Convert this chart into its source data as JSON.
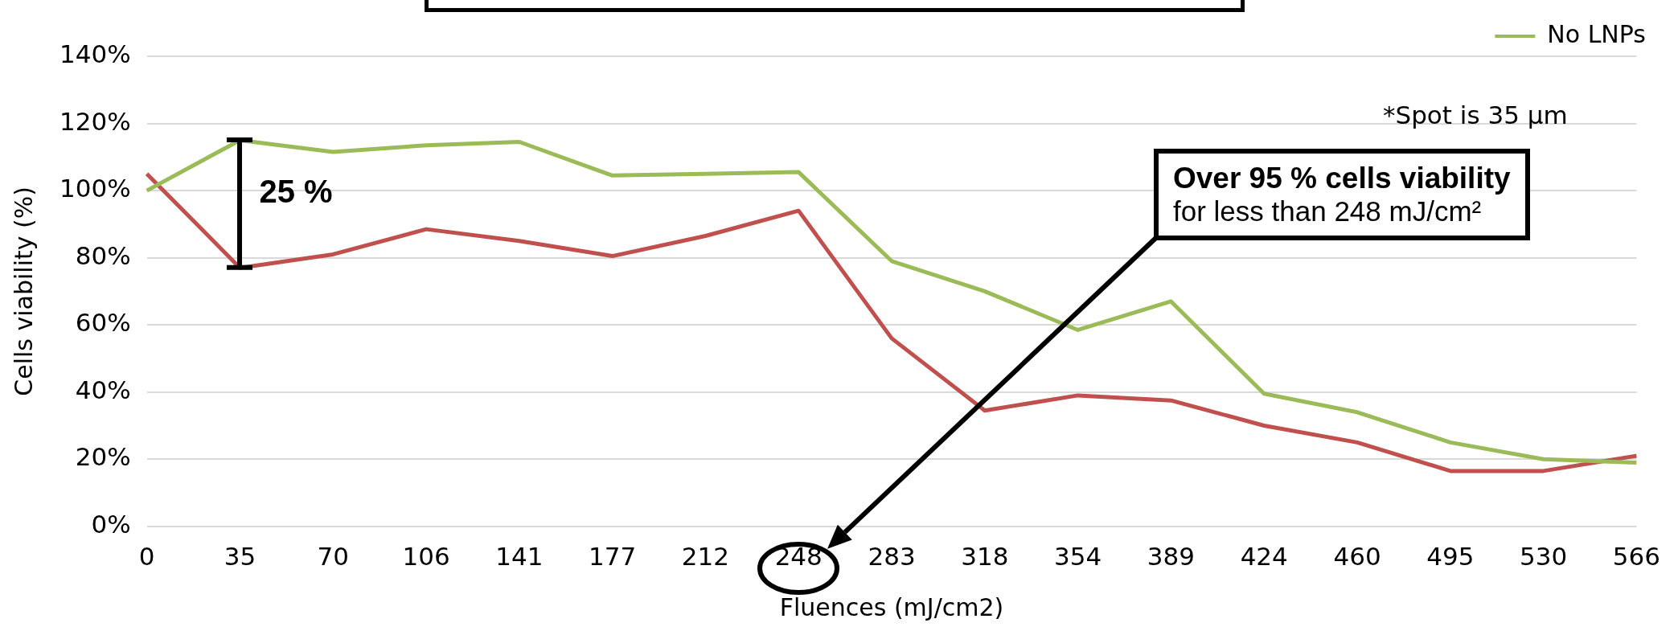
{
  "chart_data": {
    "type": "line",
    "xlabel": "Fluences (mJ/cm2)",
    "ylabel": "Cells viability (%)",
    "categories": [
      "0",
      "35",
      "70",
      "106",
      "141",
      "177",
      "212",
      "248",
      "283",
      "318",
      "354",
      "389",
      "424",
      "460",
      "495",
      "530",
      "566"
    ],
    "series": [
      {
        "name": "No LNPs",
        "color": "#9bbb59",
        "values": [
          100,
          115,
          111.5,
          113.5,
          114.5,
          104.5,
          105,
          105.5,
          79,
          70,
          58.5,
          67,
          39.5,
          34,
          25,
          20,
          19
        ]
      },
      {
        "color": "#c0504d",
        "values": [
          105,
          77,
          81,
          88.5,
          85,
          80.5,
          86.5,
          94,
          56,
          34.5,
          39,
          37.5,
          30,
          25,
          16.5,
          16.5,
          21
        ]
      }
    ],
    "ylim": [
      0,
      140
    ],
    "yticks": [
      {
        "value": 0,
        "label": "0%"
      },
      {
        "value": 20,
        "label": "20%"
      },
      {
        "value": 40,
        "label": "40%"
      },
      {
        "value": 60,
        "label": "60%"
      },
      {
        "value": 80,
        "label": "80%"
      },
      {
        "value": 100,
        "label": "100%"
      },
      {
        "value": 120,
        "label": "120%"
      },
      {
        "value": 140,
        "label": "140%"
      }
    ],
    "grid": "y",
    "legend": "top right",
    "marker": "none",
    "line_style": "solid",
    "annotations": [
      {
        "text": "25 %",
        "x": "35",
        "y": 115
      },
      "Over 95 % cells viability",
      "for less than 248 mJ/cm²",
      "*Spot is 35 µm"
    ]
  }
}
